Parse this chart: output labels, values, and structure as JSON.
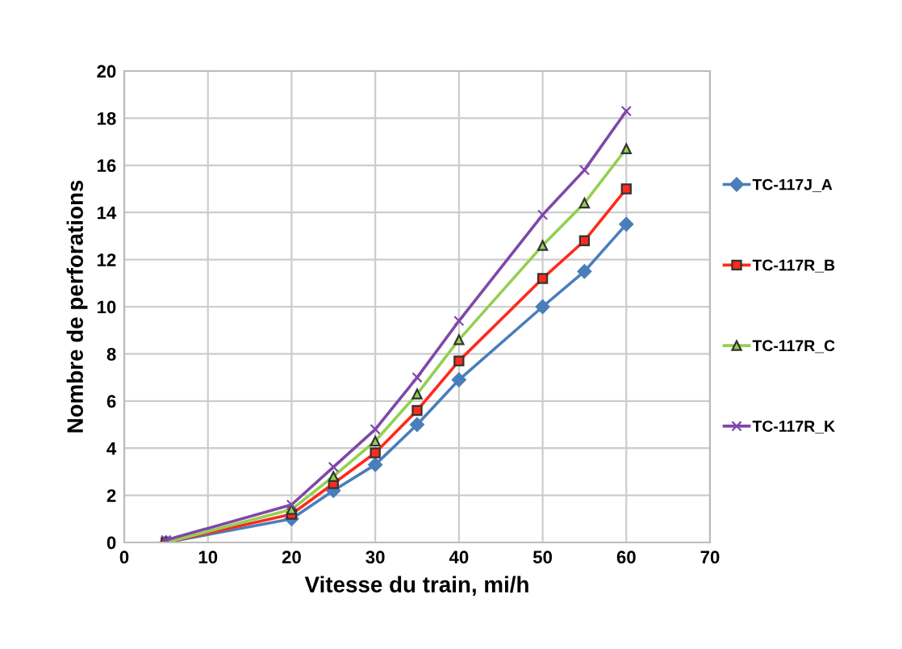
{
  "chart_data": {
    "type": "line",
    "xlabel": "Vitesse du train, mi/h",
    "ylabel": "Nombre de perforations",
    "x": [
      5,
      20,
      25,
      30,
      35,
      40,
      50,
      55,
      60
    ],
    "series": [
      {
        "name": "TC-117J_A",
        "color": "#4a7ebb",
        "marker": "diamond",
        "values": [
          0,
          1.0,
          2.2,
          3.3,
          5.0,
          6.9,
          10.0,
          11.5,
          13.5
        ]
      },
      {
        "name": "TC-117R_B",
        "color": "#ff2a1a",
        "marker": "square",
        "values": [
          0,
          1.2,
          2.5,
          3.8,
          5.6,
          7.7,
          11.2,
          12.8,
          15.0
        ]
      },
      {
        "name": "TC-117R_C",
        "color": "#92d050",
        "marker": "triangle",
        "values": [
          0,
          1.4,
          2.8,
          4.3,
          6.3,
          8.6,
          12.6,
          14.4,
          16.7
        ]
      },
      {
        "name": "TC-117R_K",
        "color": "#7f48a8",
        "marker": "cross",
        "values": [
          0.1,
          1.6,
          3.2,
          4.8,
          7.0,
          9.4,
          13.9,
          15.8,
          18.3
        ]
      }
    ],
    "xlim": [
      0,
      70
    ],
    "xticks": [
      0,
      10,
      20,
      30,
      40,
      50,
      60,
      70
    ],
    "ylim": [
      0,
      20
    ],
    "yticks": [
      0,
      2,
      4,
      6,
      8,
      10,
      12,
      14,
      16,
      18,
      20
    ],
    "grid": true,
    "legend": "right"
  }
}
